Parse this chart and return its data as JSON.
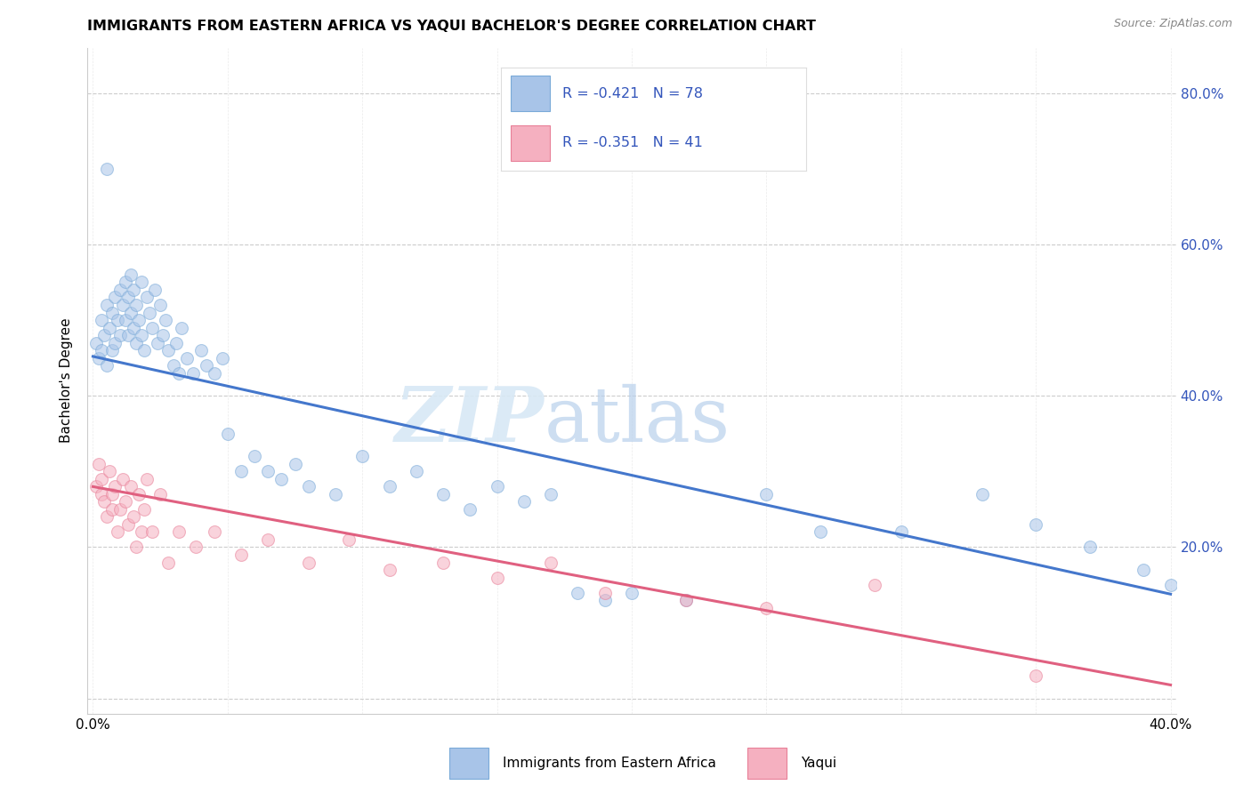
{
  "title": "IMMIGRANTS FROM EASTERN AFRICA VS YAQUI BACHELOR'S DEGREE CORRELATION CHART",
  "source": "Source: ZipAtlas.com",
  "ylabel": "Bachelor's Degree",
  "watermark_zip": "ZIP",
  "watermark_atlas": "atlas",
  "series1_name": "Immigrants from Eastern Africa",
  "series1_color": "#A8C4E8",
  "series1_edge_color": "#7AAAD8",
  "series1_line_color": "#4477CC",
  "series1_R": -0.421,
  "series1_N": 78,
  "series2_name": "Yaqui",
  "series2_color": "#F5B0C0",
  "series2_edge_color": "#E88098",
  "series2_line_color": "#E06080",
  "series2_R": -0.351,
  "series2_N": 41,
  "xlim": [
    -0.002,
    0.402
  ],
  "ylim": [
    -0.02,
    0.86
  ],
  "xticks": [
    0.0,
    0.05,
    0.1,
    0.15,
    0.2,
    0.25,
    0.3,
    0.35,
    0.4
  ],
  "yticks": [
    0.0,
    0.2,
    0.4,
    0.6,
    0.8
  ],
  "legend_text_color": "#3355BB",
  "legend_fontsize": 12,
  "title_fontsize": 11.5,
  "axis_label_fontsize": 11,
  "tick_fontsize": 11,
  "background_color": "#FFFFFF",
  "grid_color": "#CCCCCC",
  "marker_size": 100,
  "marker_alpha": 0.55,
  "line_width": 2.2,
  "series1_line_y0": 0.452,
  "series1_line_y1": 0.138,
  "series2_line_y0": 0.28,
  "series2_line_y1": 0.018,
  "series1_x": [
    0.001,
    0.002,
    0.003,
    0.003,
    0.004,
    0.005,
    0.005,
    0.006,
    0.007,
    0.007,
    0.008,
    0.008,
    0.009,
    0.01,
    0.01,
    0.011,
    0.012,
    0.012,
    0.013,
    0.013,
    0.014,
    0.014,
    0.015,
    0.015,
    0.016,
    0.016,
    0.017,
    0.018,
    0.018,
    0.019,
    0.02,
    0.021,
    0.022,
    0.023,
    0.024,
    0.025,
    0.026,
    0.027,
    0.028,
    0.03,
    0.031,
    0.032,
    0.033,
    0.035,
    0.037,
    0.04,
    0.042,
    0.045,
    0.048,
    0.05,
    0.055,
    0.06,
    0.065,
    0.07,
    0.075,
    0.08,
    0.09,
    0.1,
    0.11,
    0.12,
    0.13,
    0.14,
    0.15,
    0.16,
    0.17,
    0.18,
    0.19,
    0.2,
    0.22,
    0.25,
    0.27,
    0.3,
    0.33,
    0.35,
    0.37,
    0.39,
    0.4,
    0.005
  ],
  "series1_y": [
    0.47,
    0.45,
    0.5,
    0.46,
    0.48,
    0.52,
    0.44,
    0.49,
    0.51,
    0.46,
    0.53,
    0.47,
    0.5,
    0.54,
    0.48,
    0.52,
    0.5,
    0.55,
    0.53,
    0.48,
    0.51,
    0.56,
    0.49,
    0.54,
    0.52,
    0.47,
    0.5,
    0.48,
    0.55,
    0.46,
    0.53,
    0.51,
    0.49,
    0.54,
    0.47,
    0.52,
    0.48,
    0.5,
    0.46,
    0.44,
    0.47,
    0.43,
    0.49,
    0.45,
    0.43,
    0.46,
    0.44,
    0.43,
    0.45,
    0.35,
    0.3,
    0.32,
    0.3,
    0.29,
    0.31,
    0.28,
    0.27,
    0.32,
    0.28,
    0.3,
    0.27,
    0.25,
    0.28,
    0.26,
    0.27,
    0.14,
    0.13,
    0.14,
    0.13,
    0.27,
    0.22,
    0.22,
    0.27,
    0.23,
    0.2,
    0.17,
    0.15,
    0.7
  ],
  "series2_x": [
    0.001,
    0.002,
    0.003,
    0.003,
    0.004,
    0.005,
    0.006,
    0.007,
    0.007,
    0.008,
    0.009,
    0.01,
    0.011,
    0.012,
    0.013,
    0.014,
    0.015,
    0.016,
    0.017,
    0.018,
    0.019,
    0.02,
    0.022,
    0.025,
    0.028,
    0.032,
    0.038,
    0.045,
    0.055,
    0.065,
    0.08,
    0.095,
    0.11,
    0.13,
    0.15,
    0.17,
    0.19,
    0.22,
    0.25,
    0.29,
    0.35
  ],
  "series2_y": [
    0.28,
    0.31,
    0.27,
    0.29,
    0.26,
    0.24,
    0.3,
    0.27,
    0.25,
    0.28,
    0.22,
    0.25,
    0.29,
    0.26,
    0.23,
    0.28,
    0.24,
    0.2,
    0.27,
    0.22,
    0.25,
    0.29,
    0.22,
    0.27,
    0.18,
    0.22,
    0.2,
    0.22,
    0.19,
    0.21,
    0.18,
    0.21,
    0.17,
    0.18,
    0.16,
    0.18,
    0.14,
    0.13,
    0.12,
    0.15,
    0.03
  ]
}
